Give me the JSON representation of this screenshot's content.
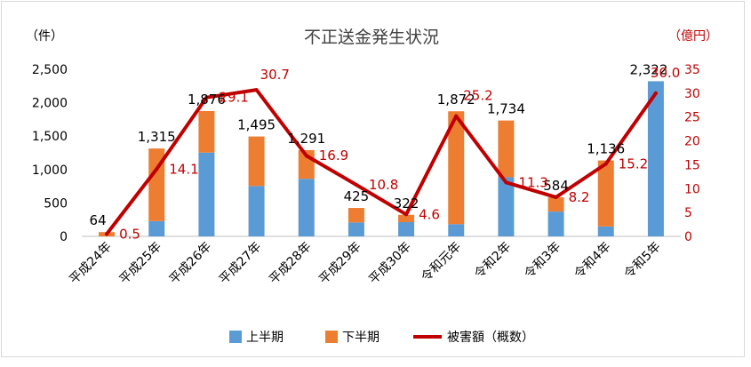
{
  "chart_data": {
    "type": "bar",
    "title": "不正送金発生状況",
    "ylabel_left": "（件）",
    "ylabel_right": "（億円）",
    "ylim_left": [
      0,
      2500
    ],
    "yticks_left": [
      "0",
      "500",
      "1,000",
      "1,500",
      "2,000",
      "2,500"
    ],
    "ylim_right": [
      0,
      35
    ],
    "yticks_right": [
      "0",
      "5",
      "10",
      "15",
      "20",
      "25",
      "30",
      "35"
    ],
    "categories": [
      "平成24年",
      "平成25年",
      "平成26年",
      "平成27年",
      "平成28年",
      "平成29年",
      "平成30年",
      "令和元年",
      "令和2年",
      "令和3年",
      "令和4年",
      "令和5年"
    ],
    "series": [
      {
        "name": "上半期",
        "type": "bar",
        "stack": "count",
        "axis": "left",
        "values": [
          0,
          228,
          1254,
          754,
          862,
          208,
          213,
          183,
          885,
          371,
          148,
          2322
        ]
      },
      {
        "name": "下半期",
        "type": "bar",
        "stack": "count",
        "axis": "left",
        "values": [
          64,
          1087,
          622,
          741,
          429,
          217,
          109,
          1689,
          849,
          213,
          988,
          0
        ]
      },
      {
        "name": "被害額（概数）",
        "type": "line",
        "axis": "right",
        "values": [
          0.5,
          14.1,
          29.1,
          30.7,
          16.9,
          10.8,
          4.6,
          25.2,
          11.3,
          8.2,
          15.2,
          30.0
        ]
      }
    ],
    "totals": [
      64,
      1315,
      1876,
      1495,
      1291,
      425,
      322,
      1872,
      1734,
      584,
      1136,
      2322
    ],
    "total_labels": [
      "64",
      "1,315",
      "1,876",
      "1,495",
      "1,291",
      "425",
      "322",
      "1,872",
      "1,734",
      "584",
      "1,136",
      "2,322"
    ],
    "amount_labels": [
      "0.5",
      "14.1",
      "29.1",
      "30.7",
      "16.9",
      "10.8",
      "4.6",
      "25.2",
      "11.3",
      "8.2",
      "15.2",
      "30.0"
    ],
    "legend_position": "bottom",
    "grid": false,
    "colors": {
      "upper": "#5B9BD5",
      "lower": "#ED7D31",
      "line": "#C00000",
      "right_axis_text": "#C00000",
      "text": "#000000",
      "axis": "#BFBFBF"
    }
  }
}
